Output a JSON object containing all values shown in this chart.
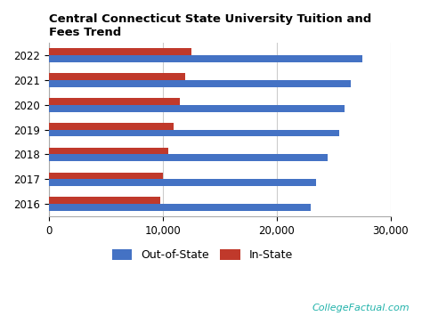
{
  "title": "Central Connecticut State University Tuition and\nFees Trend",
  "years": [
    "2022",
    "2021",
    "2020",
    "2019",
    "2018",
    "2017",
    "2016"
  ],
  "out_of_state": [
    27500,
    26500,
    26000,
    25500,
    24500,
    23500,
    23000
  ],
  "in_state": [
    12500,
    12000,
    11500,
    11000,
    10500,
    10000,
    9800
  ],
  "bar_color_out": "#4472C4",
  "bar_color_in": "#C0392B",
  "legend_labels": [
    "Out-of-State",
    "In-State"
  ],
  "xlim": [
    0,
    30000
  ],
  "xticks": [
    0,
    10000,
    20000,
    30000
  ],
  "xtick_labels": [
    "0",
    "10,000",
    "20,000",
    "30,000"
  ],
  "watermark": "CollegeFactual.com",
  "watermark_color": "#20B2AA",
  "bg_color": "#FFFFFF",
  "grid_color": "#CCCCCC",
  "title_fontsize": 9.5,
  "tick_fontsize": 8.5,
  "legend_fontsize": 9,
  "bar_height": 0.28
}
